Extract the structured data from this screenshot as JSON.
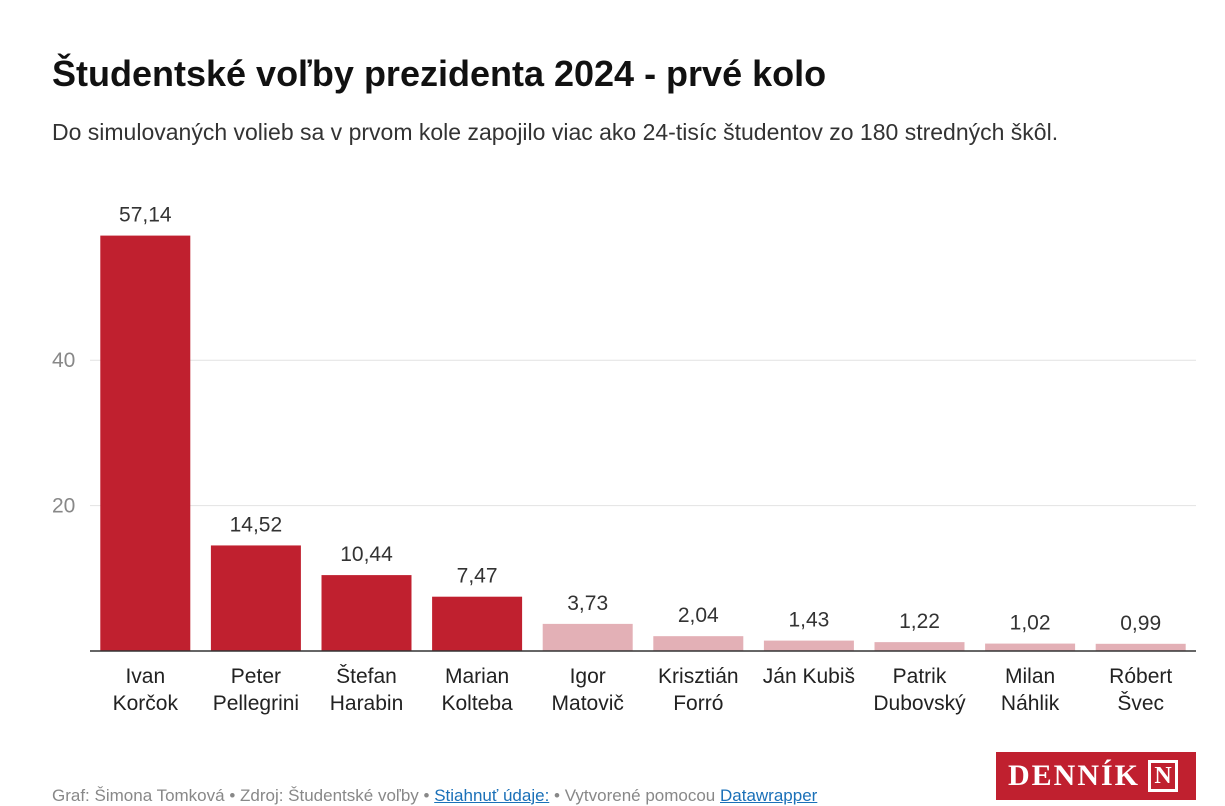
{
  "title": "Študentské voľby prezidenta 2024 - prvé kolo",
  "subtitle": "Do simulovaných volieb sa v prvom kole zapojilo viac ako 24-tisíc študentov zo 180 stredných škôl.",
  "footer": {
    "credit": "Graf: Šimona Tomková • Zdroj: Študentské voľby • ",
    "download_link": "Stiahnuť údaje:",
    "created_with": " • Vytvorené pomocou ",
    "tool_link": "Datawrapper"
  },
  "logo": {
    "text": "DENNÍK",
    "mark": "N"
  },
  "chart_data": {
    "type": "bar",
    "categories": [
      [
        "Ivan",
        "Korčok"
      ],
      [
        "Peter",
        "Pellegrini"
      ],
      [
        "Štefan",
        "Harabin"
      ],
      [
        "Marian",
        "Kolteba"
      ],
      [
        "Igor",
        "Matovič"
      ],
      [
        "Krisztián",
        "Forró"
      ],
      [
        "Ján Kubiš"
      ],
      [
        "Patrik",
        "Dubovský"
      ],
      [
        "Milan",
        "Náhlik"
      ],
      [
        "Róbert",
        "Švec"
      ]
    ],
    "values": [
      57.14,
      14.52,
      10.44,
      7.47,
      3.73,
      2.04,
      1.43,
      1.22,
      1.02,
      0.99
    ],
    "value_labels": [
      "57,14",
      "14,52",
      "10,44",
      "7,47",
      "3,73",
      "2,04",
      "1,43",
      "1,22",
      "1,02",
      "0,99"
    ],
    "bar_colors": [
      "#c0202f",
      "#c0202f",
      "#c0202f",
      "#c0202f",
      "#e3b0b6",
      "#e3b0b6",
      "#e3b0b6",
      "#e3b0b6",
      "#e3b0b6",
      "#e3b0b6"
    ],
    "yticks": [
      20,
      40
    ],
    "ylim": [
      0,
      60
    ],
    "grid": true,
    "xlabel": "",
    "ylabel": ""
  }
}
